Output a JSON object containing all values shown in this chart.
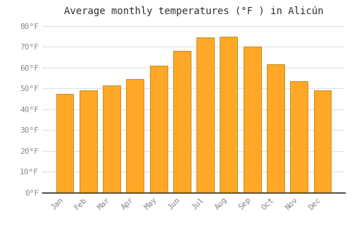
{
  "title": "Average monthly temperatures (°F ) in Alicún",
  "months": [
    "Jan",
    "Feb",
    "Mar",
    "Apr",
    "May",
    "Jun",
    "Jul",
    "Aug",
    "Sep",
    "Oct",
    "Nov",
    "Dec"
  ],
  "values": [
    47.5,
    49.0,
    51.5,
    54.5,
    61.0,
    68.0,
    74.5,
    75.0,
    70.0,
    61.5,
    53.5,
    49.0
  ],
  "bar_color": "#FFA726",
  "bar_edge_color": "#B8860B",
  "background_color": "#FFFFFF",
  "grid_color": "#E0E0E0",
  "ylim": [
    0,
    83
  ],
  "yticks": [
    0,
    10,
    20,
    30,
    40,
    50,
    60,
    70,
    80
  ],
  "title_fontsize": 10,
  "tick_fontsize": 8,
  "tick_font_color": "#888888"
}
